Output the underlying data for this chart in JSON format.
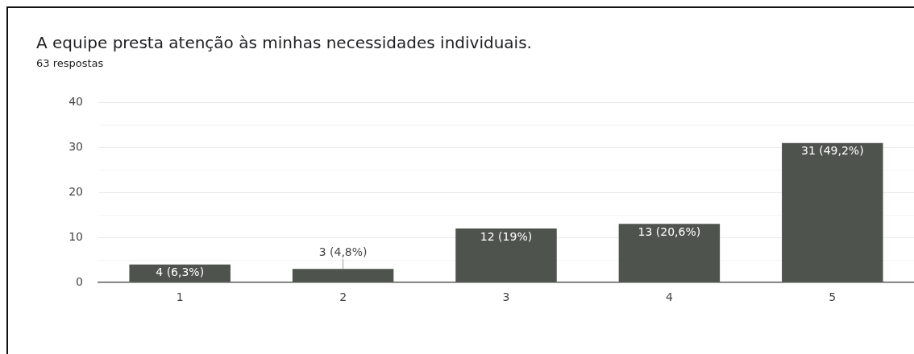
{
  "chart_data": {
    "type": "bar",
    "title": "A equipe presta atenção às minhas necessidades individuais.",
    "subtitle": "63 respostas",
    "categories": [
      "1",
      "2",
      "3",
      "4",
      "5"
    ],
    "values": [
      4,
      3,
      12,
      13,
      31
    ],
    "value_labels": [
      "4 (6,3%)",
      "3 (4,8%)",
      "12 (19%)",
      "13 (20,6%)",
      "31 (49,2%)"
    ],
    "color": "#4e534d",
    "ylim": [
      0,
      40
    ],
    "yticks": [
      0,
      {
        "value": 5,
        "label": null
      },
      10,
      {
        "value": 15,
        "label": null
      },
      20,
      {
        "value": 25,
        "label": null
      },
      30,
      {
        "value": 35,
        "label": null
      },
      40
    ],
    "grid": "y"
  }
}
